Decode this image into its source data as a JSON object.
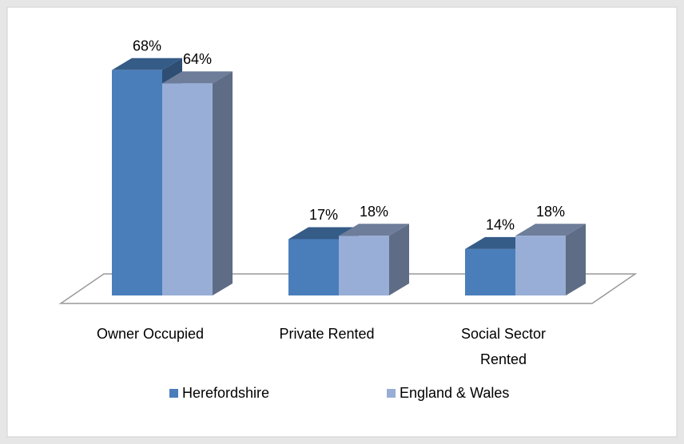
{
  "chart_data": {
    "type": "bar3d",
    "categories": [
      "Owner Occupied",
      "Private Rented",
      "Social Sector Rented"
    ],
    "series": [
      {
        "name": "Herefordshire",
        "color": "#4a7ebb",
        "values": [
          68,
          17,
          14
        ],
        "value_labels": [
          "68%",
          "17%",
          "14%"
        ]
      },
      {
        "name": "England & Wales",
        "color": "#98aed6",
        "values": [
          64,
          18,
          18
        ],
        "value_labels": [
          "64%",
          "18%",
          "18%"
        ]
      }
    ],
    "legend": "bottom"
  }
}
